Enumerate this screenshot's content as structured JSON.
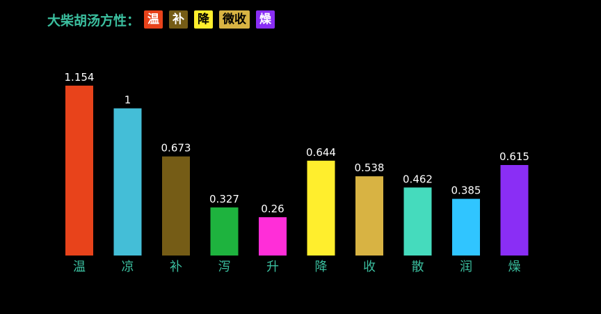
{
  "header": {
    "title": "大柴胡汤方性：",
    "tags": [
      {
        "label": "温",
        "bg": "#e8431b",
        "fg": "#ffffff"
      },
      {
        "label": "补",
        "bg": "#755c16",
        "fg": "#ffffff"
      },
      {
        "label": "降",
        "bg": "#ffee2d",
        "fg": "#000000"
      },
      {
        "label": "微收",
        "bg": "#d8b343",
        "fg": "#000000"
      },
      {
        "label": "燥",
        "bg": "#8a2ef5",
        "fg": "#ffffff"
      }
    ]
  },
  "chart_data": {
    "type": "bar",
    "title": "",
    "xlabel": "",
    "ylabel": "",
    "categories": [
      "温",
      "凉",
      "补",
      "泻",
      "升",
      "降",
      "收",
      "散",
      "润",
      "燥"
    ],
    "values": [
      1.154,
      1,
      0.673,
      0.327,
      0.26,
      0.644,
      0.538,
      0.462,
      0.385,
      0.615
    ],
    "value_labels": [
      "1.154",
      "1",
      "0.673",
      "0.327",
      "0.26",
      "0.644",
      "0.538",
      "0.462",
      "0.385",
      "0.615"
    ],
    "colors": [
      "#e8431b",
      "#44bed7",
      "#755c16",
      "#1eb33e",
      "#ff2ed8",
      "#ffee2d",
      "#d8b343",
      "#45dbbd",
      "#30c5ff",
      "#8a2ef5"
    ],
    "ylim": [
      0,
      1.154
    ],
    "grid": false,
    "legend": "none"
  }
}
